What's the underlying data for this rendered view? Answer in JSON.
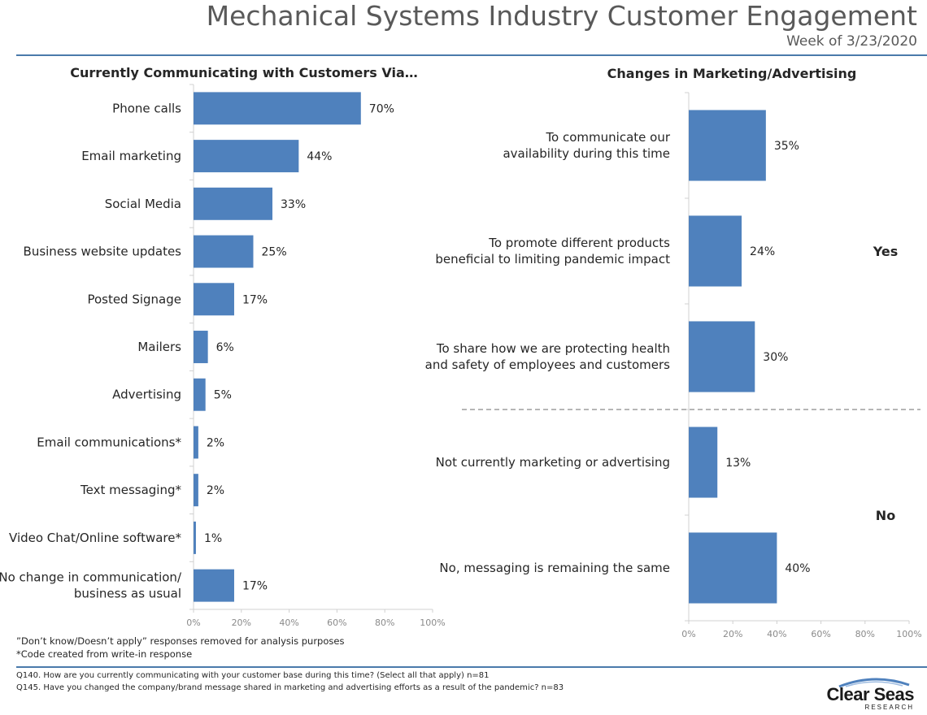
{
  "header": {
    "title": "Mechanical Systems Industry Customer Engagement",
    "subtitle": "Week of 3/23/2020"
  },
  "chart_data": [
    {
      "type": "bar",
      "orientation": "horizontal",
      "title": "Currently Communicating with Customers Via…",
      "categories": [
        "Phone calls",
        "Email marketing",
        "Social Media",
        "Business website updates",
        "Posted Signage",
        "Mailers",
        "Advertising",
        "Email communications*",
        "Text messaging*",
        "Video Chat/Online software*",
        "No change in communication/\nbusiness as usual"
      ],
      "values": [
        70,
        44,
        33,
        25,
        17,
        6,
        5,
        2,
        2,
        1,
        17
      ],
      "value_labels": [
        "70%",
        "44%",
        "33%",
        "25%",
        "17%",
        "6%",
        "5%",
        "2%",
        "2%",
        "1%",
        "17%"
      ],
      "xlim": [
        0,
        100
      ],
      "ticks": [
        "0%",
        "20%",
        "40%",
        "60%",
        "80%",
        "100%"
      ],
      "bar_color": "#4f81bd",
      "grid": false
    },
    {
      "type": "bar",
      "orientation": "horizontal",
      "title": "Changes in Marketing/Advertising",
      "categories": [
        "To communicate our\navailability during this time",
        "To promote different products\nbeneficial to limiting pandemic impact",
        "To share how we are protecting health\nand safety of employees and customers",
        "Not currently marketing or advertising",
        "No, messaging is remaining the same"
      ],
      "values": [
        35,
        24,
        30,
        13,
        40
      ],
      "value_labels": [
        "35%",
        "24%",
        "30%",
        "13%",
        "40%"
      ],
      "groups": [
        {
          "label": "Yes",
          "start": 0,
          "end": 2
        },
        {
          "label": "No",
          "start": 3,
          "end": 4
        }
      ],
      "xlim": [
        0,
        100
      ],
      "ticks": [
        "0%",
        "20%",
        "40%",
        "60%",
        "80%",
        "100%"
      ],
      "bar_color": "#4f81bd",
      "grid": false
    }
  ],
  "footnotes": [
    "”Don’t know/Doesn’t apply” responses removed for analysis purposes",
    "*Code created from write-in response"
  ],
  "questions": [
    "Q140.  How are you currently communicating with your customer base during this time?  (Select all that apply) n=81",
    "Q145.  Have you changed the company/brand message shared in marketing and advertising efforts as a result of the pandemic? n=83"
  ],
  "logo": {
    "name": "Clear Seas",
    "tagline": "RESEARCH"
  },
  "colors": {
    "accent": "#4a7aab",
    "bar": "#4f81bd"
  }
}
